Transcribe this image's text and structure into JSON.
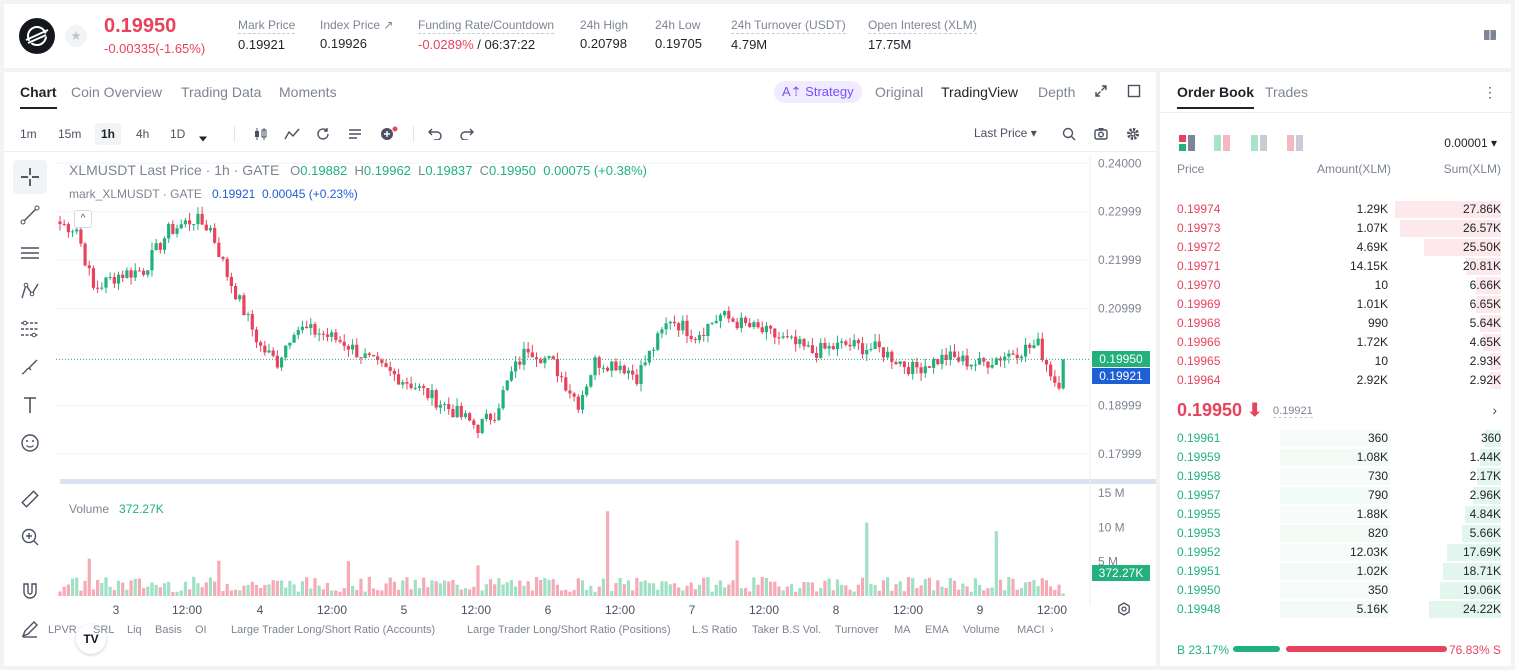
{
  "ticker": {
    "last_price": "0.19950",
    "change": "-0.00335(-1.65%)",
    "stats": {
      "mark_label": "Mark Price",
      "mark_value": "0.19921",
      "index_label": "Index Price ↗",
      "index_value": "0.19926",
      "funding_label": "Funding Rate/Countdown",
      "funding_rate": "-0.0289%",
      "funding_countdown": " / 06:37:22",
      "high_label": "24h High",
      "high_value": "0.20798",
      "low_label": "24h Low",
      "low_value": "0.19705",
      "turnover_label": "24h Turnover (USDT)",
      "turnover_value": "4.79M",
      "oi_label": "Open Interest (XLM)",
      "oi_value": "17.75M"
    }
  },
  "chart_tabs": [
    "Chart",
    "Coin Overview",
    "Trading Data",
    "Moments"
  ],
  "view_tabs": {
    "strategy": "A⇡ Strategy",
    "original": "Original",
    "tradingview": "TradingView",
    "depth": "Depth"
  },
  "toolbar": {
    "timeframes": [
      "1m",
      "15m",
      "1h",
      "4h",
      "1D"
    ],
    "active_timeframe": "1h",
    "price_type": "Last Price ▾"
  },
  "legend": {
    "symbol": "XLMUSDT Last Price · 1h · GATE",
    "o_label": "O",
    "o": "0.19882",
    "h_label": "H",
    "h": "0.19962",
    "l_label": "L",
    "l": "0.19837",
    "c_label": "C",
    "c": "0.19950",
    "change": "0.00075 (+0.38%)",
    "mark_symbol": "mark_XLMUSDT · GATE",
    "mark_value": "0.19921",
    "mark_change": "0.00045 (+0.23%)",
    "volume_label": "Volume",
    "volume_value": "372.27K"
  },
  "price_axis": [
    "0.24000",
    "0.22999",
    "0.21999",
    "0.20999",
    "0.18999",
    "0.17999"
  ],
  "volume_axis": [
    "15 M",
    "10 M",
    "5 M"
  ],
  "time_axis": [
    "3",
    "12:00",
    "4",
    "12:00",
    "5",
    "12:00",
    "6",
    "12:00",
    "7",
    "12:00",
    "8",
    "12:00",
    "9",
    "12:00"
  ],
  "price_tags": {
    "last": "0.19950",
    "mark": "0.19921",
    "volume": "372.27K"
  },
  "colors": {
    "up": "#22b07d",
    "down": "#e8435d",
    "mark": "#1e5fd6",
    "accent": "#7b4dff"
  },
  "indicators": [
    "LPVR",
    "SRL",
    "Liq",
    "Basis",
    "OI",
    "Large Trader Long/Short Ratio (Accounts)",
    "Large Trader Long/Short Ratio (Positions)",
    "L.S Ratio",
    "Taker B.S Vol.",
    "Turnover",
    "MA",
    "EMA",
    "Volume",
    "MACI"
  ],
  "chart_data": {
    "type": "candlestick",
    "symbol": "XLMUSDT",
    "interval": "1h",
    "ylim": [
      0.175,
      0.2415
    ],
    "volume_ylim": [
      0,
      16000000
    ],
    "x_labels": [
      "3",
      "12:00",
      "4",
      "12:00",
      "5",
      "12:00",
      "6",
      "12:00",
      "7",
      "12:00",
      "8",
      "12:00",
      "9",
      "12:00"
    ],
    "anchors": [
      [
        0,
        0.2275
      ],
      [
        4,
        0.2265
      ],
      [
        8,
        0.214
      ],
      [
        14,
        0.217
      ],
      [
        20,
        0.218
      ],
      [
        26,
        0.226
      ],
      [
        32,
        0.2285
      ],
      [
        36,
        0.2265
      ],
      [
        40,
        0.217
      ],
      [
        48,
        0.202
      ],
      [
        52,
        0.199
      ],
      [
        56,
        0.206
      ],
      [
        62,
        0.205
      ],
      [
        68,
        0.203
      ],
      [
        76,
        0.198
      ],
      [
        84,
        0.1945
      ],
      [
        92,
        0.19
      ],
      [
        100,
        0.1855
      ],
      [
        104,
        0.1885
      ],
      [
        108,
        0.1965
      ],
      [
        112,
        0.202
      ],
      [
        118,
        0.1985
      ],
      [
        124,
        0.1905
      ],
      [
        128,
        0.199
      ],
      [
        134,
        0.1985
      ],
      [
        138,
        0.196
      ],
      [
        142,
        0.202
      ],
      [
        146,
        0.208
      ],
      [
        152,
        0.2045
      ],
      [
        158,
        0.2085
      ],
      [
        164,
        0.2065
      ],
      [
        172,
        0.204
      ],
      [
        180,
        0.201
      ],
      [
        188,
        0.2025
      ],
      [
        196,
        0.2015
      ],
      [
        204,
        0.1975
      ],
      [
        212,
        0.2
      ],
      [
        220,
        0.1985
      ],
      [
        228,
        0.201
      ],
      [
        234,
        0.2025
      ],
      [
        238,
        0.195
      ],
      [
        240,
        0.195
      ]
    ],
    "last_price": 0.1995,
    "mark_price": 0.19921,
    "current_volume": 372270
  },
  "order_book": {
    "tabs": [
      "Order Book",
      "Trades"
    ],
    "precision": "0.00001 ▾",
    "headers": {
      "price": "Price",
      "amount": "Amount(XLM)",
      "sum": "Sum(XLM)"
    },
    "asks": [
      {
        "price": "0.19974",
        "amount": "1.29K",
        "sum": "27.86K",
        "depth": 1.0
      },
      {
        "price": "0.19973",
        "amount": "1.07K",
        "sum": "26.57K",
        "depth": 0.95
      },
      {
        "price": "0.19972",
        "amount": "4.69K",
        "sum": "25.50K",
        "depth": 0.73
      },
      {
        "price": "0.19971",
        "amount": "14.15K",
        "sum": "20.81K",
        "depth": 0.33
      },
      {
        "price": "0.19970",
        "amount": "10",
        "sum": "6.66K",
        "depth": 0.24
      },
      {
        "price": "0.19969",
        "amount": "1.01K",
        "sum": "6.65K",
        "depth": 0.24
      },
      {
        "price": "0.19968",
        "amount": "990",
        "sum": "5.64K",
        "depth": 0.2
      },
      {
        "price": "0.19966",
        "amount": "1.72K",
        "sum": "4.65K",
        "depth": 0.17
      },
      {
        "price": "0.19965",
        "amount": "10",
        "sum": "2.93K",
        "depth": 0.1
      },
      {
        "price": "0.19964",
        "amount": "2.92K",
        "sum": "2.92K",
        "depth": 0.1
      }
    ],
    "mid_price": "0.19950 ⬇",
    "mid_mark": "0.19921",
    "bids": [
      {
        "price": "0.19961",
        "amount": "360",
        "sum": "360",
        "depth": 0.15
      },
      {
        "price": "0.19959",
        "amount": "1.08K",
        "sum": "1.44K",
        "depth": 0.2
      },
      {
        "price": "0.19958",
        "amount": "730",
        "sum": "2.17K",
        "depth": 0.23
      },
      {
        "price": "0.19957",
        "amount": "790",
        "sum": "2.96K",
        "depth": 0.26
      },
      {
        "price": "0.19955",
        "amount": "1.88K",
        "sum": "4.84K",
        "depth": 0.34
      },
      {
        "price": "0.19953",
        "amount": "820",
        "sum": "5.66K",
        "depth": 0.37
      },
      {
        "price": "0.19952",
        "amount": "12.03K",
        "sum": "17.69K",
        "depth": 0.51
      },
      {
        "price": "0.19951",
        "amount": "1.02K",
        "sum": "18.71K",
        "depth": 0.55
      },
      {
        "price": "0.19950",
        "amount": "350",
        "sum": "19.06K",
        "depth": 0.58
      },
      {
        "price": "0.19948",
        "amount": "5.16K",
        "sum": "24.22K",
        "depth": 0.68
      }
    ],
    "buy_ratio_label": "B 23.17%",
    "sell_ratio_label": "76.83% S",
    "buy_ratio": 0.2317
  }
}
